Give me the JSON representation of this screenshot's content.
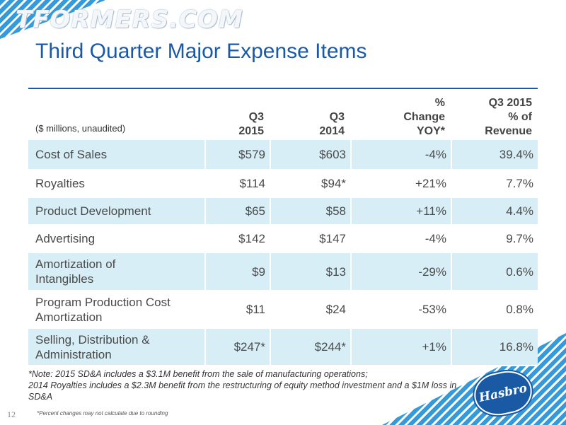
{
  "watermark": "TFORMERS.COM",
  "title": "Third Quarter Major Expense Items",
  "table": {
    "units": "($ millions, unaudited)",
    "headers": [
      [
        "Q3",
        "2015"
      ],
      [
        "Q3",
        "2014"
      ],
      [
        "%",
        "Change",
        "YOY*"
      ],
      [
        "Q3 2015",
        "% of",
        "Revenue"
      ]
    ],
    "rows": [
      {
        "label": [
          "Cost of Sales"
        ],
        "q3_2015": "$579",
        "q3_2014": "$603",
        "change": "-4%",
        "pct_rev": "39.4%"
      },
      {
        "label": [
          "Royalties"
        ],
        "q3_2015": "$114",
        "q3_2014": "$94*",
        "change": "+21%",
        "pct_rev": "7.7%"
      },
      {
        "label": [
          "Product Development"
        ],
        "q3_2015": "$65",
        "q3_2014": "$58",
        "change": "+11%",
        "pct_rev": "4.4%"
      },
      {
        "label": [
          "Advertising"
        ],
        "q3_2015": "$142",
        "q3_2014": "$147",
        "change": "-4%",
        "pct_rev": "9.7%"
      },
      {
        "label": [
          "Amortization of",
          "Intangibles"
        ],
        "q3_2015": "$9",
        "q3_2014": "$13",
        "change": "-29%",
        "pct_rev": "0.6%"
      },
      {
        "label": [
          "Program Production Cost",
          "Amortization"
        ],
        "q3_2015": "$11",
        "q3_2014": "$24",
        "change": "-53%",
        "pct_rev": "0.8%"
      },
      {
        "label": [
          "Selling, Distribution &",
          "Administration"
        ],
        "q3_2015": "$247*",
        "q3_2014": "$244*",
        "change": "+1%",
        "pct_rev": "16.8%"
      }
    ]
  },
  "note": [
    "*Note: 2015 SD&A includes a $3.1M benefit from the sale of manufacturing operations;",
    "2014 Royalties includes a $2.3M benefit from the restructuring of equity method investment and a $1M loss in",
    "SD&A"
  ],
  "page_number": "12",
  "footnote": "*Percent changes may not calculate due to rounding",
  "logo_text": "Hasbro",
  "colors": {
    "brand_blue": "#1a5aa5",
    "row_shade": "#d8eef6",
    "pattern_blue": "#1e8fd6"
  }
}
